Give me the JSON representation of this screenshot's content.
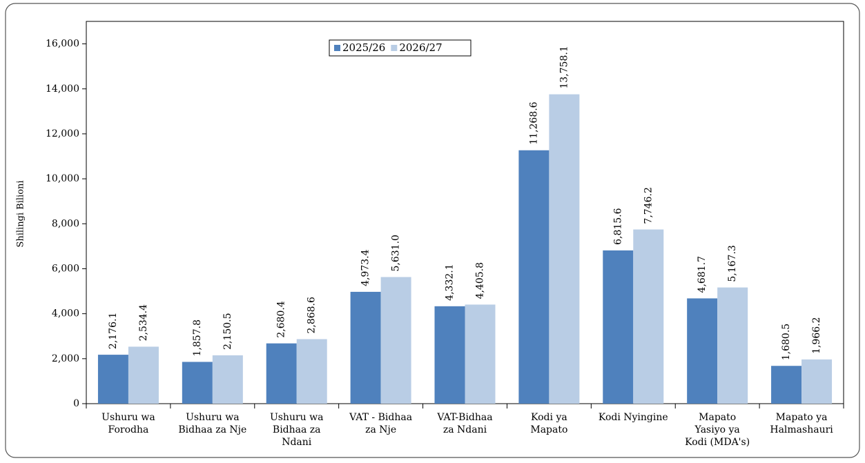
{
  "chart_data": {
    "type": "bar",
    "y_label": "Shilingi Bilioni",
    "categories": [
      [
        "Ushuru wa",
        "Forodha"
      ],
      [
        "Ushuru wa",
        "Bidhaa za Nje"
      ],
      [
        "Ushuru wa",
        "Bidhaa za",
        "Ndani"
      ],
      [
        "VAT - Bidhaa",
        "za Nje"
      ],
      [
        "VAT-Bidhaa",
        "za Ndani"
      ],
      [
        "Kodi ya",
        "Mapato"
      ],
      [
        "Kodi Nyingine"
      ],
      [
        "Mapato",
        "Yasiyo ya",
        "Kodi (MDA's)"
      ],
      [
        "Mapato ya",
        "Halmashauri"
      ]
    ],
    "series": [
      {
        "name": "2025/26",
        "color": "#4f81bd",
        "values": [
          2176.1,
          1857.8,
          2680.4,
          4973.4,
          4332.1,
          11268.6,
          6815.6,
          4681.7,
          1680.5
        ],
        "value_labels": [
          "2,176.1",
          "1,857.8",
          "2,680.4",
          "4,973.4",
          "4,332.1",
          "11,268.6",
          "6,815.6",
          "4,681.7",
          "1,680.5"
        ]
      },
      {
        "name": "2026/27",
        "color": "#b9cde5",
        "values": [
          2534.4,
          2150.5,
          2868.6,
          5631.0,
          4405.8,
          13758.1,
          7746.2,
          5167.3,
          1966.2
        ],
        "value_labels": [
          "2,534.4",
          "2,150.5",
          "2,868.6",
          "5,631.0",
          "4,405.8",
          "13,758.1",
          "7,746.2",
          "5,167.3",
          "1,966.2"
        ]
      }
    ],
    "ylim": [
      0,
      17000
    ],
    "yticks": [
      0,
      {
        "value": 2000,
        "label": "2,000"
      },
      {
        "value": 4000,
        "label": "4,000"
      },
      {
        "value": 6000,
        "label": "6,000"
      },
      {
        "value": 8000,
        "label": "8,000"
      },
      {
        "value": 10000,
        "label": "10,000"
      },
      {
        "value": 12000,
        "label": "12,000"
      },
      {
        "value": 14000,
        "label": "14,000"
      },
      {
        "value": 16000,
        "label": "16,000"
      }
    ],
    "legend": "top"
  }
}
